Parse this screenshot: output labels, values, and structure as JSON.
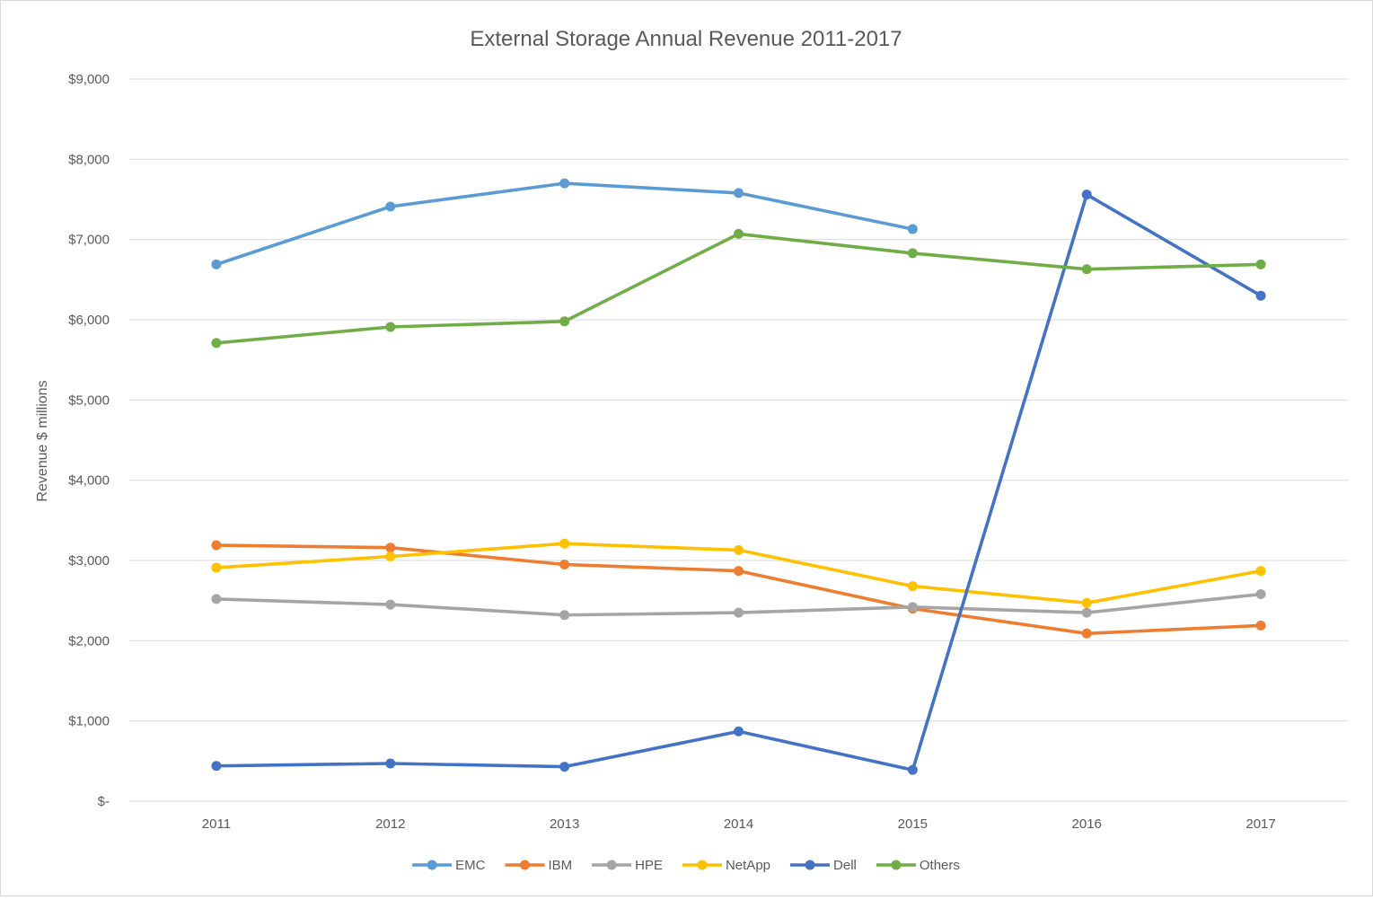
{
  "chart_data": {
    "type": "line",
    "title": "External Storage Annual Revenue 2011-2017",
    "xlabel": "",
    "ylabel": "Revenue $ millions",
    "categories": [
      "2011",
      "2012",
      "2013",
      "2014",
      "2015",
      "2016",
      "2017"
    ],
    "ylim": [
      0,
      9000
    ],
    "yticks": [
      0,
      1000,
      2000,
      3000,
      4000,
      5000,
      6000,
      7000,
      8000,
      9000
    ],
    "ytick_labels": [
      "$-",
      "$1,000",
      "$2,000",
      "$3,000",
      "$4,000",
      "$5,000",
      "$6,000",
      "$7,000",
      "$8,000",
      "$9,000"
    ],
    "grid": true,
    "legend_position": "bottom",
    "series": [
      {
        "name": "EMC",
        "color": "#5b9bd5",
        "values": [
          6690,
          7410,
          7700,
          7580,
          7130,
          null,
          null
        ]
      },
      {
        "name": "IBM",
        "color": "#ed7d31",
        "values": [
          3190,
          3160,
          2950,
          2870,
          2400,
          2090,
          2190
        ]
      },
      {
        "name": "HPE",
        "color": "#a5a5a5",
        "values": [
          2520,
          2450,
          2320,
          2350,
          2420,
          2350,
          2580
        ]
      },
      {
        "name": "NetApp",
        "color": "#ffc000",
        "values": [
          2910,
          3050,
          3210,
          3130,
          2680,
          2470,
          2870
        ]
      },
      {
        "name": "Dell",
        "color": "#4472c4",
        "values": [
          440,
          470,
          430,
          870,
          390,
          7560,
          6300
        ]
      },
      {
        "name": "Others",
        "color": "#70ad47",
        "values": [
          5710,
          5910,
          5980,
          7070,
          6830,
          6630,
          6690
        ]
      }
    ]
  }
}
